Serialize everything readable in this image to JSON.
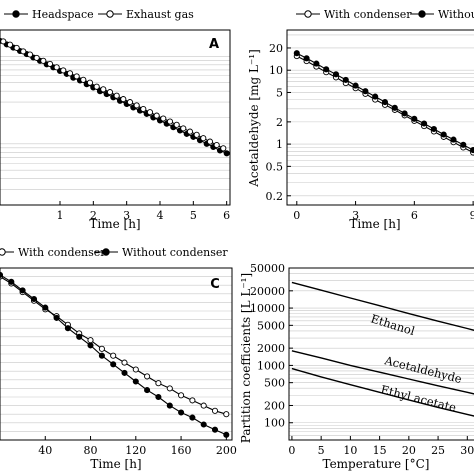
{
  "chart_data": [
    {
      "panel_label": "A",
      "type": "scatter",
      "xlabel": "Time [h]",
      "ylabel": "",
      "xlim": [
        -0.8,
        6.1
      ],
      "ylim": [
        0.2,
        20
      ],
      "yscale": "log",
      "xticks": [
        1,
        2,
        3,
        4,
        5,
        6
      ],
      "yticks": [],
      "grid": "horizontal",
      "legend_position": "top",
      "series": [
        {
          "name": "Headspace",
          "marker": "filled-circle",
          "color": "#000000",
          "x": [
            -0.8,
            -0.6,
            -0.4,
            -0.2,
            0.0,
            0.2,
            0.4,
            0.6,
            0.8,
            1.0,
            1.2,
            1.4,
            1.6,
            1.8,
            2.0,
            2.2,
            2.4,
            2.6,
            2.8,
            3.0,
            3.2,
            3.4,
            3.6,
            3.8,
            4.0,
            4.2,
            4.4,
            4.6,
            4.8,
            5.0,
            5.2,
            5.4,
            5.6,
            5.8,
            6.0
          ],
          "y": [
            15.0,
            13.7,
            12.6,
            11.5,
            10.6,
            9.7,
            8.9,
            8.1,
            7.5,
            6.8,
            6.3,
            5.7,
            5.3,
            4.8,
            4.4,
            4.0,
            3.7,
            3.4,
            3.1,
            2.85,
            2.6,
            2.4,
            2.2,
            2.0,
            1.85,
            1.7,
            1.55,
            1.42,
            1.3,
            1.2,
            1.1,
            1.0,
            0.92,
            0.84,
            0.78
          ]
        },
        {
          "name": "Exhaust gas",
          "marker": "open-circle",
          "color": "#000000",
          "x": [
            -0.7,
            -0.5,
            -0.3,
            -0.1,
            0.1,
            0.3,
            0.5,
            0.7,
            0.9,
            1.1,
            1.3,
            1.5,
            1.7,
            1.9,
            2.1,
            2.3,
            2.5,
            2.7,
            2.9,
            3.1,
            3.3,
            3.5,
            3.7,
            3.9,
            4.1,
            4.3,
            4.5,
            4.7,
            4.9,
            5.1,
            5.3,
            5.5,
            5.7,
            5.9
          ],
          "y": [
            14.8,
            13.6,
            12.5,
            11.4,
            10.5,
            9.6,
            8.9,
            8.2,
            7.5,
            6.9,
            6.4,
            5.9,
            5.4,
            5.0,
            4.5,
            4.2,
            3.9,
            3.55,
            3.25,
            3.0,
            2.75,
            2.5,
            2.3,
            2.1,
            1.95,
            1.8,
            1.65,
            1.5,
            1.38,
            1.27,
            1.16,
            1.06,
            0.97,
            0.89
          ]
        }
      ]
    },
    {
      "panel_label": "",
      "type": "scatter",
      "xlabel": "Time [h]",
      "ylabel": "Acetaldehyde [mg L⁻¹]",
      "xlim": [
        -0.5,
        9.3
      ],
      "ylim": [
        0.15,
        35
      ],
      "yscale": "log",
      "xticks": [
        0,
        3,
        6,
        9
      ],
      "yticks": [
        0.2,
        0.5,
        1,
        2,
        5,
        10,
        20
      ],
      "grid": "horizontal",
      "legend_position": "top",
      "series": [
        {
          "name": "With condenser",
          "marker": "open-circle",
          "color": "#000000",
          "x": [
            0,
            0.5,
            1,
            1.5,
            2,
            2.5,
            3,
            3.5,
            4,
            4.5,
            5,
            5.5,
            6,
            6.5,
            7,
            7.5,
            8,
            8.5,
            9
          ],
          "y": [
            15.5,
            13.3,
            11.2,
            9.4,
            8.0,
            6.7,
            5.7,
            4.8,
            4.0,
            3.4,
            2.9,
            2.45,
            2.07,
            1.75,
            1.48,
            1.25,
            1.06,
            0.9,
            0.77
          ]
        },
        {
          "name": "Without condenser",
          "marker": "filled-circle",
          "color": "#000000",
          "x": [
            0,
            0.5,
            1,
            1.5,
            2,
            2.5,
            3,
            3.5,
            4,
            4.5,
            5,
            5.5,
            6,
            6.5,
            7,
            7.5,
            8,
            8.5,
            9
          ],
          "y": [
            17.0,
            14.5,
            12.3,
            10.3,
            8.8,
            7.4,
            6.2,
            5.2,
            4.4,
            3.7,
            3.1,
            2.6,
            2.2,
            1.9,
            1.6,
            1.35,
            1.15,
            0.98,
            0.83
          ]
        }
      ]
    },
    {
      "panel_label": "C",
      "type": "scatter",
      "xlabel": "Time [h]",
      "ylabel": "",
      "xlim": [
        0,
        205
      ],
      "ylim": [
        0,
        1
      ],
      "yscale": "linear",
      "xticks": [
        40,
        80,
        120,
        160,
        200
      ],
      "yticks": [],
      "grid": "horizontal",
      "legend_position": "top",
      "series": [
        {
          "name": "With condenser",
          "marker": "open-circle",
          "color": "#000000",
          "x": [
            0,
            10,
            20,
            30,
            40,
            50,
            60,
            70,
            80,
            90,
            100,
            110,
            120,
            130,
            140,
            150,
            160,
            170,
            180,
            190,
            200
          ],
          "y": [
            0.95,
            0.91,
            0.86,
            0.81,
            0.76,
            0.72,
            0.67,
            0.62,
            0.58,
            0.53,
            0.49,
            0.45,
            0.41,
            0.37,
            0.33,
            0.3,
            0.26,
            0.23,
            0.2,
            0.17,
            0.15
          ]
        },
        {
          "name": "Without condenser",
          "marker": "filled-circle",
          "color": "#000000",
          "x": [
            0,
            10,
            20,
            30,
            40,
            50,
            60,
            70,
            80,
            90,
            100,
            110,
            120,
            130,
            140,
            150,
            160,
            170,
            180,
            190,
            200
          ],
          "y": [
            0.96,
            0.92,
            0.87,
            0.82,
            0.77,
            0.71,
            0.65,
            0.6,
            0.55,
            0.49,
            0.44,
            0.39,
            0.34,
            0.29,
            0.25,
            0.2,
            0.16,
            0.13,
            0.09,
            0.06,
            0.03
          ]
        }
      ]
    },
    {
      "panel_label": "",
      "type": "line",
      "xlabel": "Temperature [°C]",
      "ylabel": "Partition coefficients [L L⁻¹]",
      "xlim": [
        -0.5,
        32
      ],
      "ylim": [
        50,
        50000
      ],
      "yscale": "log",
      "xticks": [
        0,
        5,
        10,
        15,
        20,
        25,
        30
      ],
      "yticks": [
        100,
        200,
        500,
        1000,
        2000,
        5000,
        10000,
        20000,
        50000
      ],
      "grid": "horizontal",
      "series": [
        {
          "name": "Ethanol",
          "x": [
            0,
            5,
            10,
            15,
            20,
            25,
            30,
            32
          ],
          "y": [
            28000,
            20500,
            15000,
            11000,
            8000,
            5900,
            4400,
            3900
          ]
        },
        {
          "name": "Acetaldehyde",
          "x": [
            0,
            5,
            10,
            15,
            20,
            25,
            30,
            32
          ],
          "y": [
            1800,
            1350,
            1000,
            760,
            580,
            440,
            340,
            305
          ]
        },
        {
          "name": "Ethyl acetate",
          "x": [
            0,
            5,
            10,
            15,
            20,
            25,
            30,
            32
          ],
          "y": [
            880,
            630,
            460,
            340,
            250,
            185,
            140,
            125
          ]
        }
      ]
    }
  ]
}
